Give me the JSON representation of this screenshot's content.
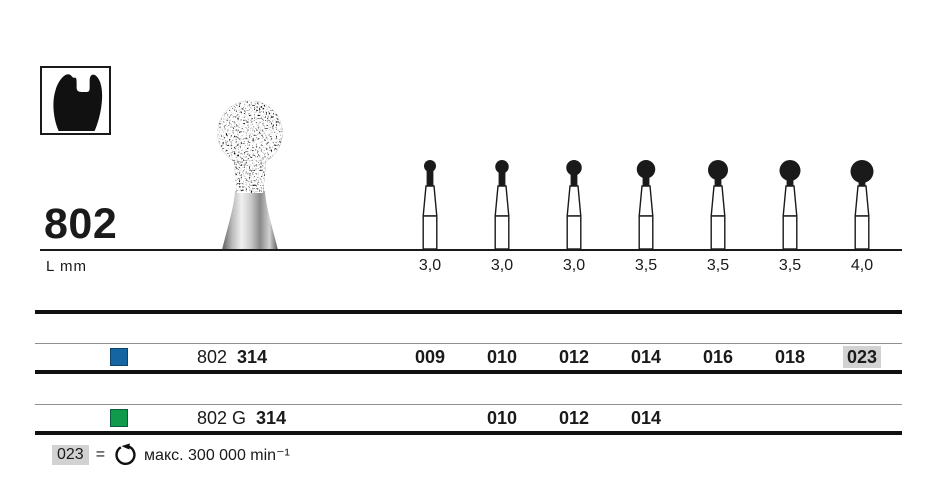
{
  "header": {
    "figure_number": "802",
    "length_axis_label": "L mm"
  },
  "pictogram": {
    "icon": "tooth-cavity-icon"
  },
  "product_photo": {
    "icon": "diamond-round-bur-photo"
  },
  "bur_diagram": {
    "lengths_mm": [
      "3,0",
      "3,0",
      "3,0",
      "3,5",
      "3,5",
      "3,5",
      "4,0"
    ]
  },
  "table": {
    "rows": [
      {
        "shank_color": "#1465a2",
        "shank_color_name": "blue",
        "product_label": "802",
        "shank_code": "314",
        "sizes": [
          {
            "value": "009",
            "col": 0,
            "highlighted": false
          },
          {
            "value": "010",
            "col": 1,
            "highlighted": false
          },
          {
            "value": "012",
            "col": 2,
            "highlighted": false
          },
          {
            "value": "014",
            "col": 3,
            "highlighted": false
          },
          {
            "value": "016",
            "col": 4,
            "highlighted": false
          },
          {
            "value": "018",
            "col": 5,
            "highlighted": false
          },
          {
            "value": "023",
            "col": 6,
            "highlighted": true
          }
        ]
      },
      {
        "shank_color": "#0f9b4b",
        "shank_color_name": "green",
        "product_label": "802 G",
        "shank_code": "314",
        "sizes": [
          {
            "value": "010",
            "col": 1,
            "highlighted": false
          },
          {
            "value": "012",
            "col": 2,
            "highlighted": false
          },
          {
            "value": "014",
            "col": 3,
            "highlighted": false
          }
        ]
      }
    ]
  },
  "footnote": {
    "size_ref": "023",
    "equals_sign": "=",
    "icon": "max-rotation-speed-icon",
    "text": "макс. 300 000 min⁻¹"
  },
  "colors": {
    "band_pink": "#f7ceba",
    "highlight_gray": "#d2d2d2",
    "line_black": "#111111"
  }
}
